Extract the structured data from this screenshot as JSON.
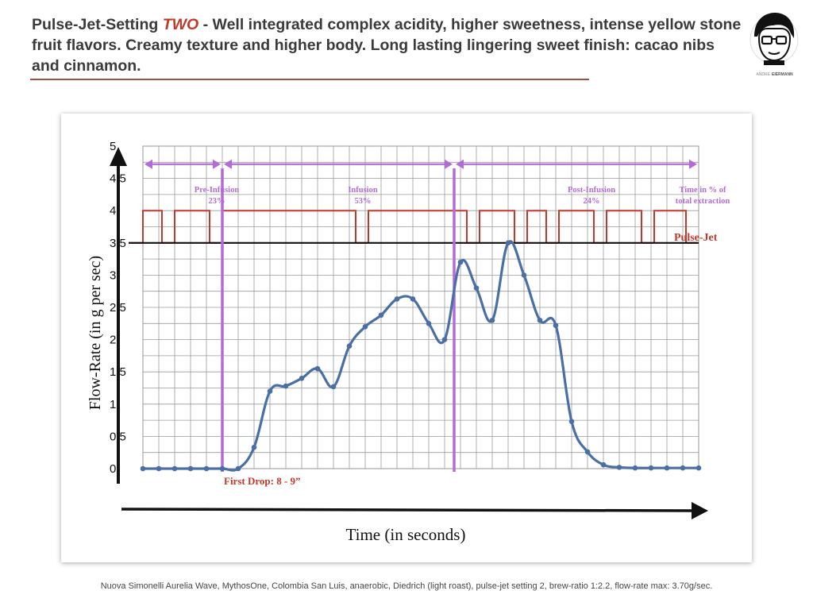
{
  "header": {
    "prefix": "Pulse-Jet-Setting ",
    "highlight": "TWO",
    "rest": " - Well integrated complex acidity, higher sweetness, intense yellow stone fruit flavors. Creamy texture and higher body. Long lasting lingering sweet finish: cacao nibs and cinnamon."
  },
  "logo": {
    "name": "avatar-logo",
    "text_line1": "ANDRE",
    "text_line2": "EIERMANN"
  },
  "chart_data": {
    "type": "line",
    "title": "",
    "xlabel": "Time (in seconds)",
    "ylabel": "Flow-Rate (in g per sec)",
    "ylim": [
      0,
      5
    ],
    "yticks": [
      "0",
      "0.5",
      "1",
      "1.5",
      "2",
      "2.5",
      "3",
      "3.5",
      "4",
      "4.5",
      "5"
    ],
    "grid": true,
    "x_columns": 35,
    "series": [
      {
        "name": "",
        "color": "#4a6fa5",
        "x": [
          0,
          1,
          2,
          3,
          4,
          5,
          6,
          7,
          8,
          9,
          10,
          11,
          12,
          13,
          14,
          15,
          16,
          17,
          18,
          19,
          20,
          21,
          22,
          23,
          24,
          25,
          26,
          27,
          28,
          29,
          30,
          31,
          32,
          33,
          34,
          35
        ],
        "y": [
          0,
          0,
          0,
          0,
          0,
          0,
          0,
          0.33,
          1.2,
          1.28,
          1.4,
          1.55,
          1.27,
          1.9,
          2.2,
          2.38,
          2.63,
          2.63,
          2.25,
          2.0,
          3.2,
          2.8,
          2.3,
          3.5,
          3.0,
          2.3,
          2.22,
          0.73,
          0.26,
          0.06,
          0.02,
          0.01,
          0.01,
          0.01,
          0.01,
          0.01
        ]
      },
      {
        "name": "Pulse-Jet",
        "color": "#c0392b",
        "high": 4.0,
        "low": 3.5,
        "low_intervals": [
          [
            -1,
            0
          ],
          [
            1.2,
            2.0
          ],
          [
            4.2,
            5.0
          ],
          [
            13.4,
            14.2
          ],
          [
            20.4,
            21.2
          ],
          [
            23.4,
            24.2
          ],
          [
            25.4,
            26.2
          ],
          [
            28.4,
            29.2
          ],
          [
            31.4,
            32.2
          ],
          [
            34.2,
            35
          ]
        ]
      }
    ],
    "baseline": {
      "value": 3.5,
      "color": "#111111"
    },
    "phase_lines": {
      "x": [
        5,
        19.6
      ],
      "color": "#b36bd6"
    },
    "phases": [
      {
        "name": "Pre-Infusion",
        "pct": "23%",
        "from": 0,
        "to": 5
      },
      {
        "name": "Infusion",
        "pct": "53%",
        "from": 5,
        "to": 19.6
      },
      {
        "name": "Post-Infusion",
        "pct": "24%",
        "from": 19.6,
        "to": 35
      }
    ],
    "phase_note": {
      "line1": "Time in % of",
      "line2": "total extraction"
    },
    "annotations": [
      {
        "text": "First Drop: 8 - 9”",
        "color": "#c0392b"
      },
      {
        "text": "Pulse-Jet",
        "color": "#c0392b"
      }
    ]
  },
  "footer": {
    "caption": "Nuova Simonelli Aurelia Wave, MythosOne, Colombia San Luis, anaerobic, Diedrich (light roast), pulse-jet setting 2, brew-ratio 1:2.2, flow-rate max: 3.70g/sec."
  }
}
